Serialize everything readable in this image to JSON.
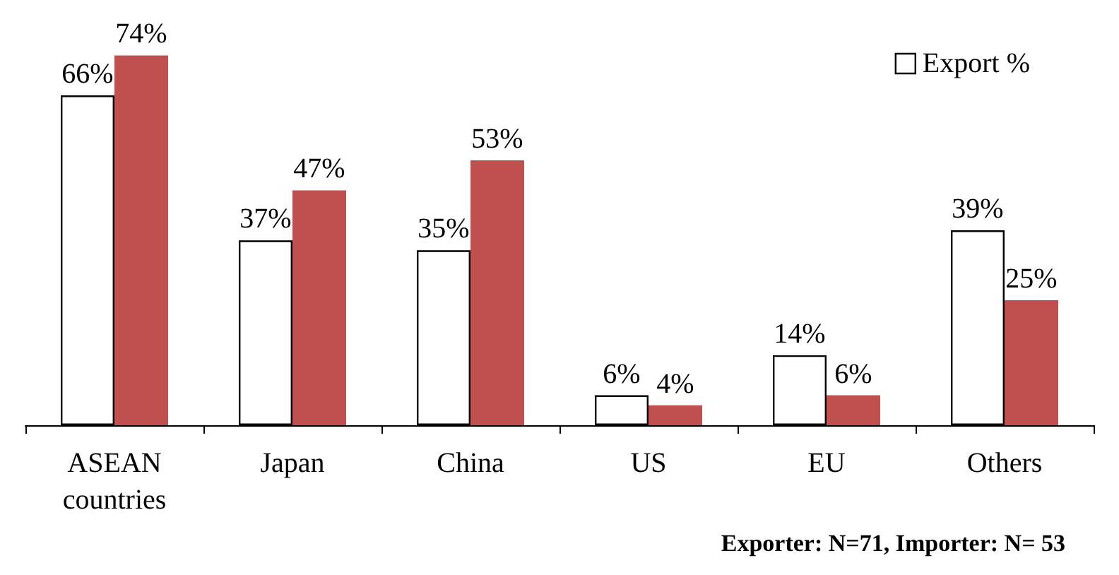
{
  "chart_data": {
    "type": "bar",
    "categories": [
      "ASEAN\ncountries",
      "Japan",
      "China",
      "US",
      "EU",
      "Others"
    ],
    "series": [
      {
        "name": "Export %",
        "color": "#ffffff",
        "values": [
          66,
          37,
          35,
          6,
          14,
          39
        ],
        "value_labels": [
          "66%",
          "37%",
          "35%",
          "6%",
          "14%",
          "39%"
        ]
      },
      {
        "color": "#c0504d",
        "values": [
          74,
          47,
          53,
          4,
          6,
          25
        ],
        "value_labels": [
          "74%",
          "47%",
          "53%",
          "4%",
          "6%",
          "25%"
        ]
      }
    ],
    "legend": "top right",
    "annotations": [
      "Exporter: N=71, Importer: N= 53"
    ]
  }
}
